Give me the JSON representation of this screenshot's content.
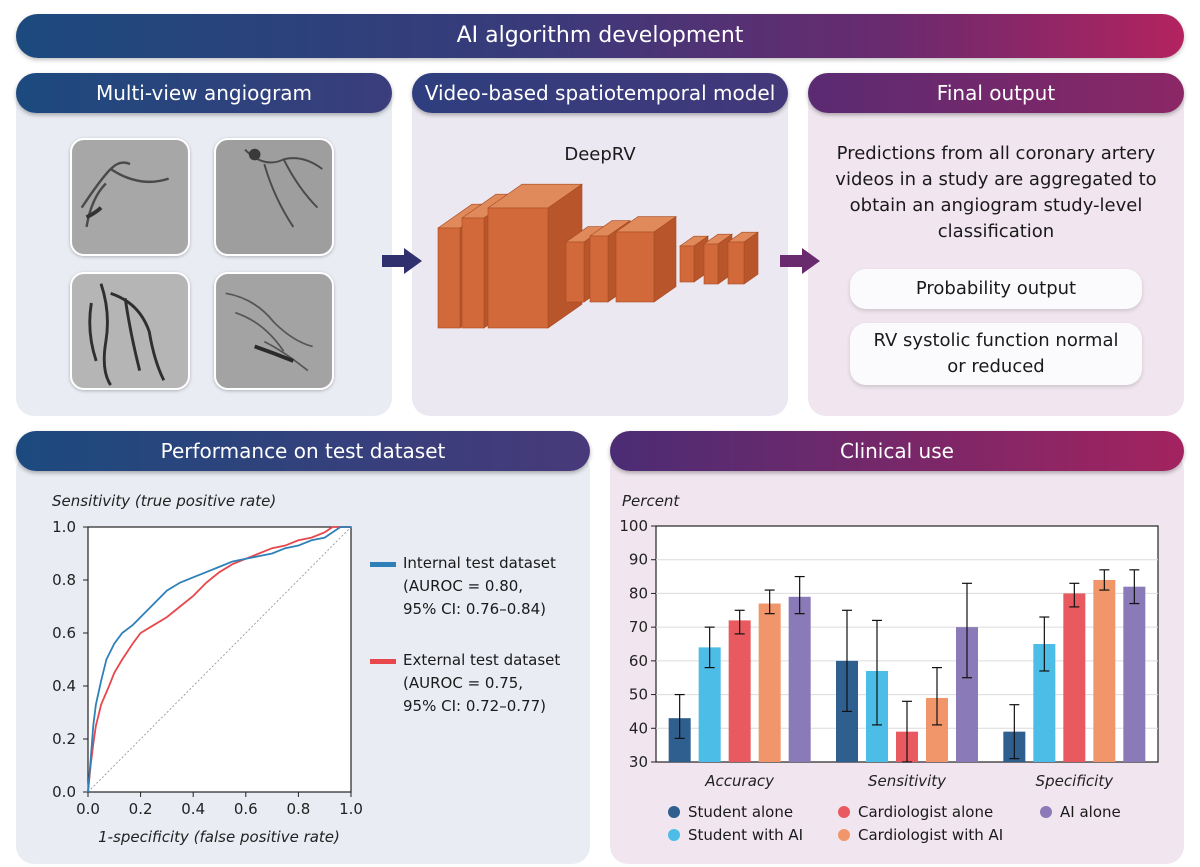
{
  "banner": {
    "title": "AI algorithm development"
  },
  "sections": {
    "multiview": {
      "title": "Multi-view angiogram"
    },
    "model": {
      "title": "Video-based spatiotemporal model",
      "name": "DeepRV"
    },
    "output": {
      "title": "Final output",
      "description": "Predictions from all coronary artery videos in a study are aggregated to obtain an angiogram study-level classification",
      "desc_lines": [
        "Predictions from all coronary artery",
        "videos in a study are aggregated to",
        "obtain an angiogram study-level",
        "classification"
      ],
      "probability": "Probability output",
      "rv_lines": [
        "RV systolic function normal",
        "or reduced"
      ]
    },
    "performance": {
      "title": "Performance on test dataset"
    },
    "clinical": {
      "title": "Clinical use"
    }
  },
  "colors": {
    "internal": "#2f7fb8",
    "external": "#e8474b",
    "layer": "#d2693a",
    "student_alone": "#2f5f8f",
    "student_ai": "#4bbde6",
    "cardio_alone": "#e85a5f",
    "cardio_ai": "#f0966a",
    "ai_alone": "#8a7ab7"
  },
  "roc": {
    "ylabel": "Sensitivity (true positive rate)",
    "xlabel": "1-specificity (false positive rate)",
    "ticks": [
      "0.0",
      "0.2",
      "0.4",
      "0.6",
      "0.8",
      "1.0"
    ],
    "legend": {
      "internal": [
        "Internal test dataset",
        "(AUROC = 0.80,",
        "95% CI: 0.76–0.84)"
      ],
      "external": [
        "External test dataset",
        "(AUROC = 0.75,",
        "95% CI: 0.72–0.77)"
      ]
    }
  },
  "chart_data": [
    {
      "type": "line",
      "xlabel": "1-specificity (false positive rate)",
      "ylabel": "Sensitivity (true positive rate)",
      "xlim": [
        0,
        1
      ],
      "ylim": [
        0,
        1
      ],
      "series": [
        {
          "name": "Internal test dataset (AUROC = 0.80, 95% CI: 0.76–0.84)",
          "x": [
            0,
            0.01,
            0.02,
            0.03,
            0.05,
            0.07,
            0.1,
            0.13,
            0.17,
            0.2,
            0.25,
            0.3,
            0.35,
            0.4,
            0.45,
            0.5,
            0.55,
            0.6,
            0.65,
            0.7,
            0.75,
            0.8,
            0.85,
            0.9,
            0.93,
            0.96,
            1.0
          ],
          "y": [
            0,
            0.12,
            0.25,
            0.33,
            0.42,
            0.5,
            0.56,
            0.6,
            0.63,
            0.66,
            0.71,
            0.76,
            0.79,
            0.81,
            0.83,
            0.85,
            0.87,
            0.88,
            0.89,
            0.9,
            0.92,
            0.93,
            0.95,
            0.96,
            0.98,
            1.0,
            1.0
          ]
        },
        {
          "name": "External test dataset (AUROC = 0.75, 95% CI: 0.72–0.77)",
          "x": [
            0,
            0.01,
            0.02,
            0.03,
            0.05,
            0.08,
            0.1,
            0.13,
            0.17,
            0.2,
            0.25,
            0.3,
            0.35,
            0.4,
            0.45,
            0.5,
            0.55,
            0.6,
            0.65,
            0.7,
            0.75,
            0.8,
            0.85,
            0.9,
            0.93,
            0.96,
            1.0
          ],
          "y": [
            0,
            0.1,
            0.18,
            0.25,
            0.33,
            0.4,
            0.45,
            0.5,
            0.56,
            0.6,
            0.63,
            0.66,
            0.7,
            0.74,
            0.79,
            0.83,
            0.86,
            0.88,
            0.9,
            0.92,
            0.93,
            0.95,
            0.96,
            0.98,
            1.0,
            1.0,
            1.0
          ]
        }
      ]
    },
    {
      "type": "bar",
      "ylabel": "Percent",
      "ylim": [
        30,
        100
      ],
      "yticks": [
        30,
        40,
        50,
        60,
        70,
        80,
        90,
        100
      ],
      "categories": [
        "Accuracy",
        "Sensitivity",
        "Specificity"
      ],
      "series": [
        {
          "name": "Student alone",
          "values": [
            43,
            60,
            39
          ],
          "err_low": [
            37,
            45,
            31
          ],
          "err_high": [
            50,
            75,
            47
          ]
        },
        {
          "name": "Student with AI",
          "values": [
            64,
            57,
            65
          ],
          "err_low": [
            58,
            41,
            57
          ],
          "err_high": [
            70,
            72,
            73
          ]
        },
        {
          "name": "Cardiologist alone",
          "values": [
            72,
            39,
            80
          ],
          "err_low": [
            68,
            30,
            76
          ],
          "err_high": [
            75,
            48,
            83
          ]
        },
        {
          "name": "Cardiologist with AI",
          "values": [
            77,
            49,
            84
          ],
          "err_low": [
            74,
            41,
            81
          ],
          "err_high": [
            81,
            58,
            87
          ]
        },
        {
          "name": "AI alone",
          "values": [
            79,
            70,
            82
          ],
          "err_low": [
            74,
            55,
            77
          ],
          "err_high": [
            85,
            83,
            87
          ]
        }
      ]
    }
  ]
}
